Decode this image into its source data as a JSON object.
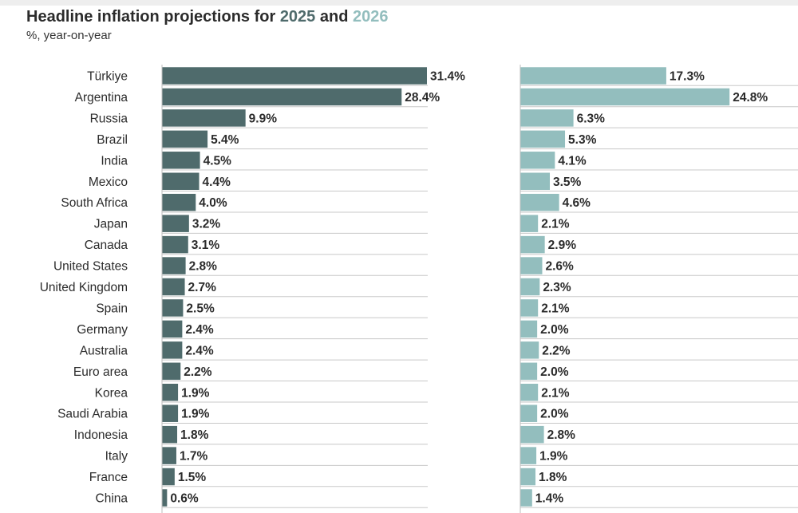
{
  "header": {
    "title_prefix": "Headline inflation projections for ",
    "year_a": "2025",
    "title_mid": " and ",
    "year_b": "2026",
    "subtitle": "%, year-on-year"
  },
  "colors": {
    "series_2025": "#4f6b6c",
    "series_2026": "#93bebe",
    "gridline": "#c8c8c8",
    "text": "#2b2b2b"
  },
  "chart_data": {
    "type": "bar",
    "orientation": "horizontal",
    "categories": [
      "Türkiye",
      "Argentina",
      "Russia",
      "Brazil",
      "India",
      "Mexico",
      "South Africa",
      "Japan",
      "Canada",
      "United States",
      "United Kingdom",
      "Spain",
      "Germany",
      "Australia",
      "Euro area",
      "Korea",
      "Saudi Arabia",
      "Indonesia",
      "Italy",
      "France",
      "China"
    ],
    "series": [
      {
        "name": "2025",
        "values": [
          31.4,
          28.4,
          9.9,
          5.4,
          4.5,
          4.4,
          4.0,
          3.2,
          3.1,
          2.8,
          2.7,
          2.5,
          2.4,
          2.4,
          2.2,
          1.9,
          1.9,
          1.8,
          1.7,
          1.5,
          0.6
        ],
        "labels": [
          "31.4%",
          "28.4%",
          "9.9%",
          "5.4%",
          "4.5%",
          "4.4%",
          "4.0%",
          "3.2%",
          "3.1%",
          "2.8%",
          "2.7%",
          "2.5%",
          "2.4%",
          "2.4%",
          "2.2%",
          "1.9%",
          "1.9%",
          "1.8%",
          "1.7%",
          "1.5%",
          "0.6%"
        ]
      },
      {
        "name": "2026",
        "values": [
          17.3,
          24.8,
          6.3,
          5.3,
          4.1,
          3.5,
          4.6,
          2.1,
          2.9,
          2.6,
          2.3,
          2.1,
          2.0,
          2.2,
          2.0,
          2.1,
          2.0,
          2.8,
          1.9,
          1.8,
          1.4
        ],
        "labels": [
          "17.3%",
          "24.8%",
          "6.3%",
          "5.3%",
          "4.1%",
          "3.5%",
          "4.6%",
          "2.1%",
          "2.9%",
          "2.6%",
          "2.3%",
          "2.1%",
          "2.0%",
          "2.2%",
          "2.0%",
          "2.1%",
          "2.0%",
          "2.8%",
          "1.9%",
          "1.8%",
          "1.4%"
        ]
      }
    ],
    "xlim": [
      0,
      31.4
    ],
    "grid": true,
    "legend": "none"
  }
}
